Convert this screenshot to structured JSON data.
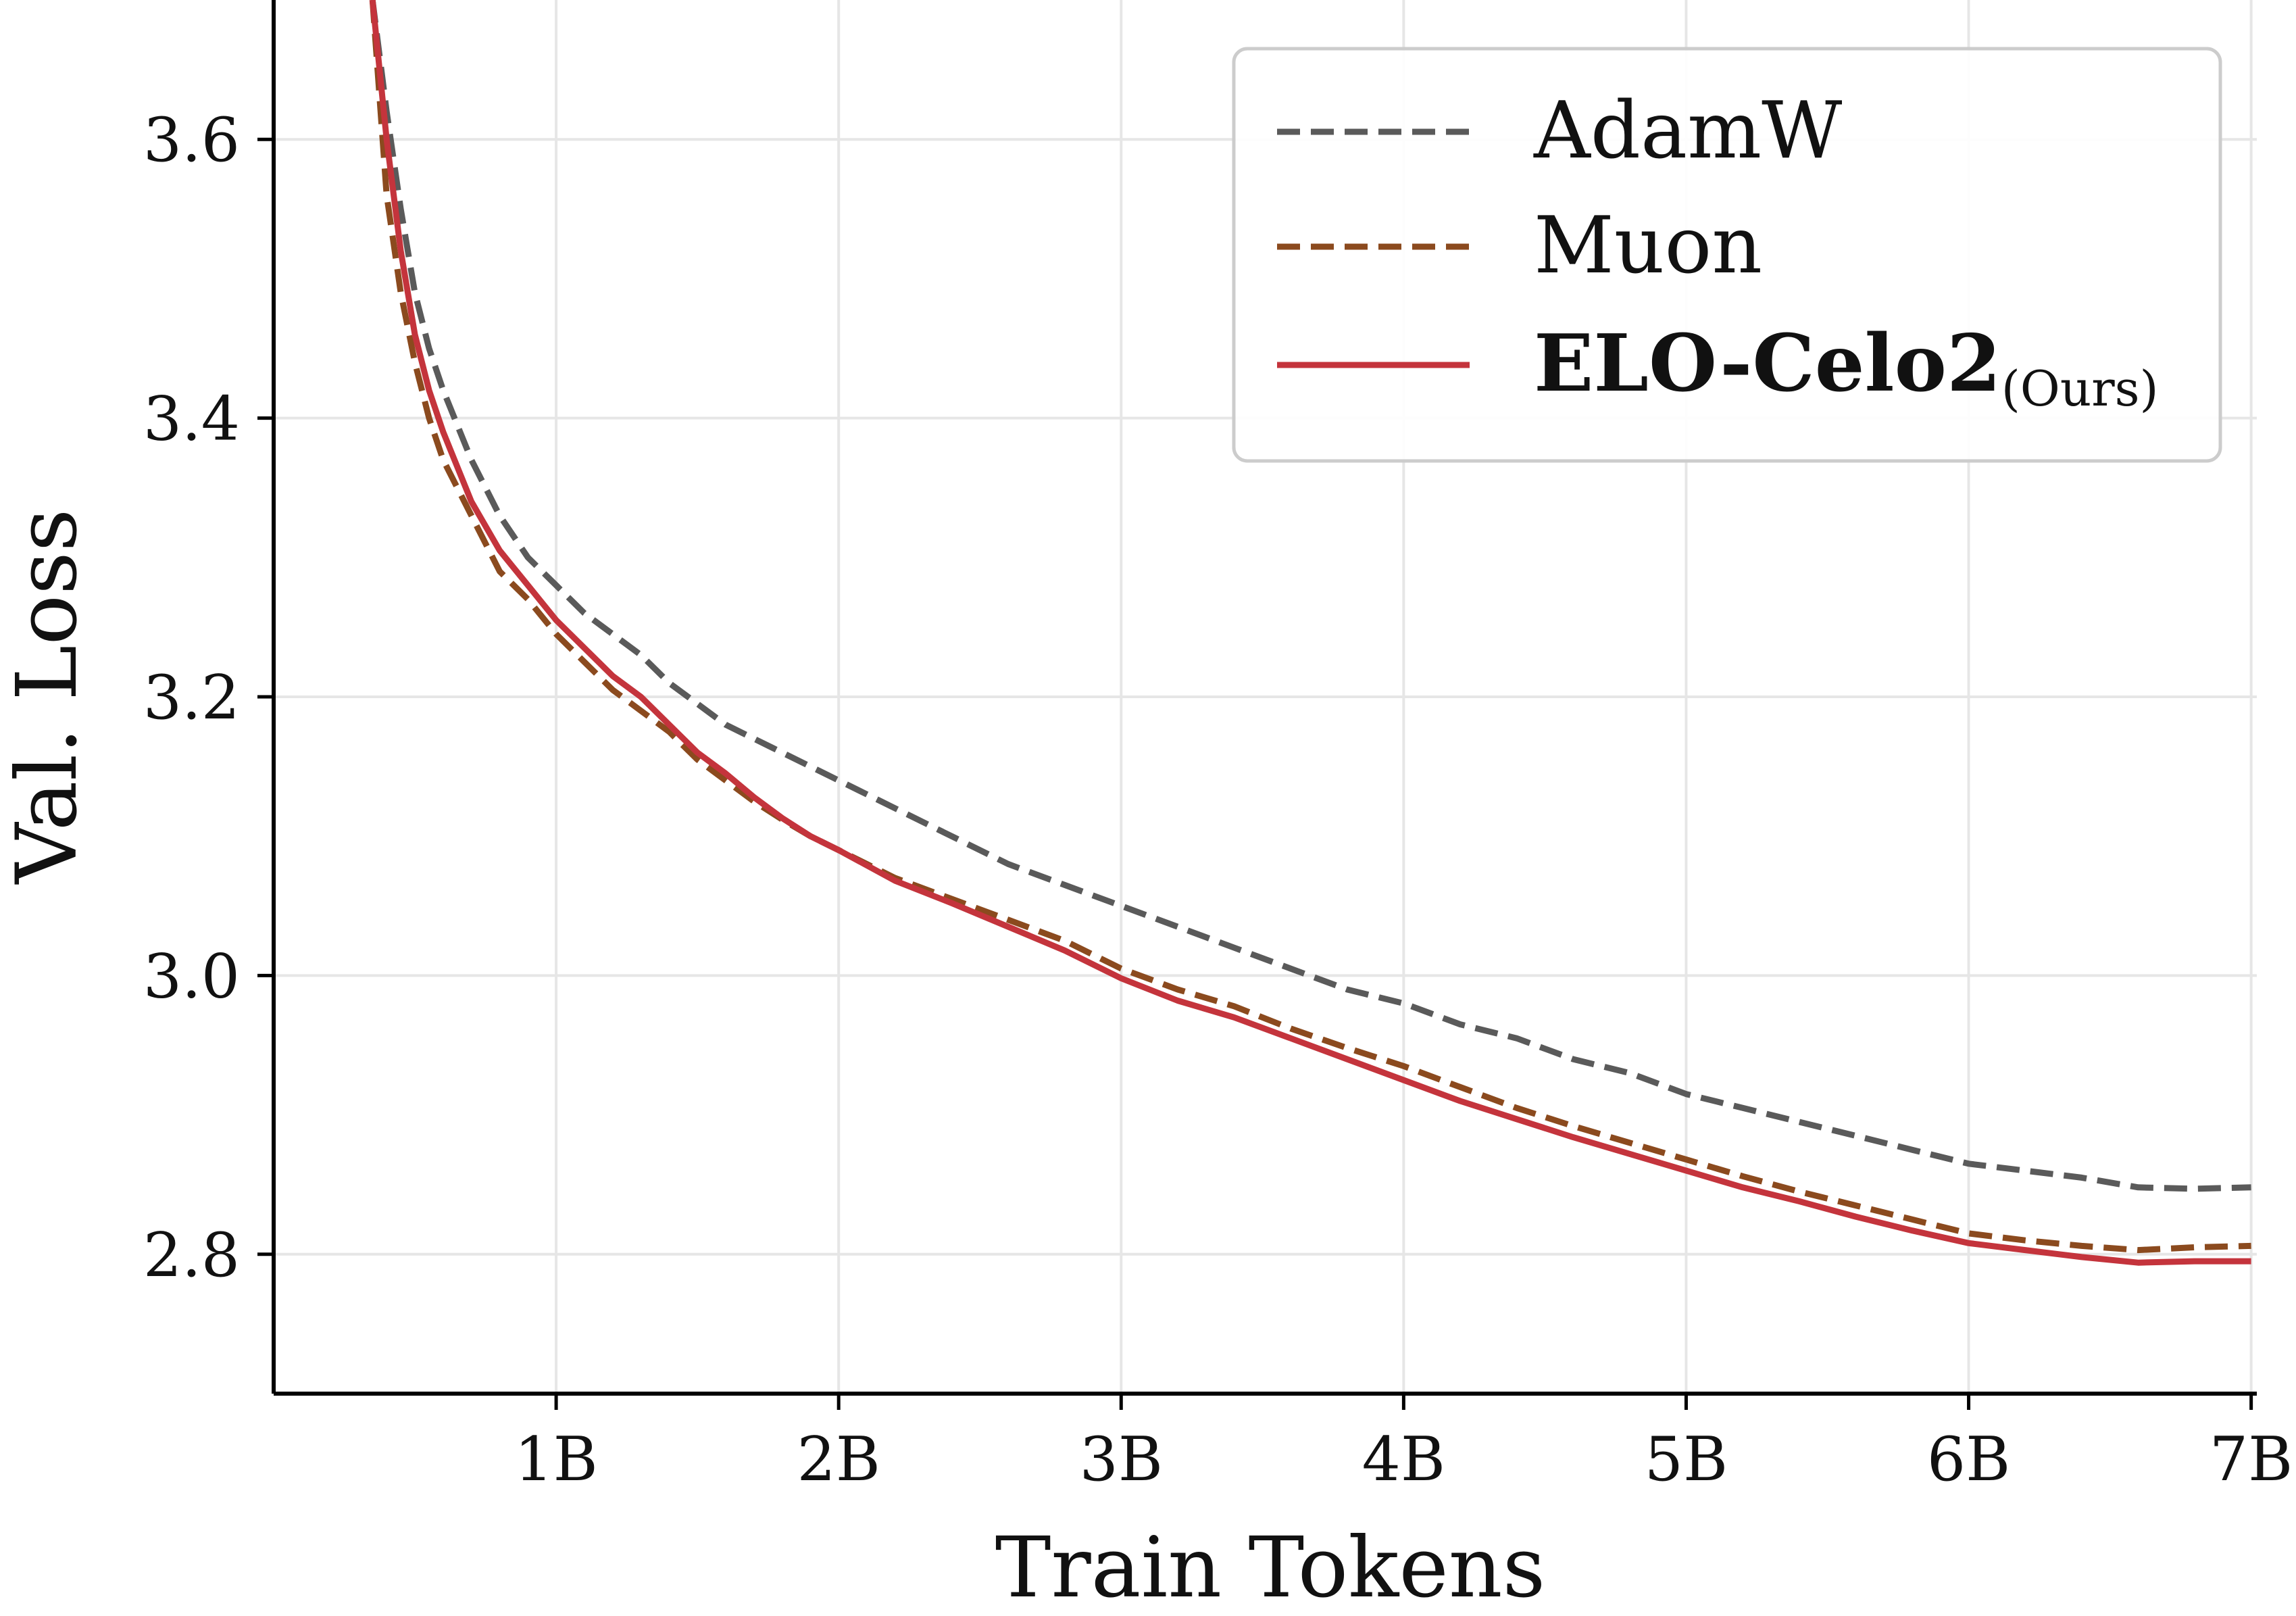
{
  "chart_data": {
    "type": "line",
    "title": "",
    "xlabel": "Train Tokens",
    "ylabel": "Val. Loss",
    "xlim": [
      0,
      7.02
    ],
    "ylim": [
      2.7,
      3.7
    ],
    "x_ticks": [
      1,
      2,
      3,
      4,
      5,
      6,
      7
    ],
    "x_tick_labels": [
      "1B",
      "2B",
      "3B",
      "4B",
      "5B",
      "6B",
      "7B"
    ],
    "y_ticks": [
      2.8,
      3.0,
      3.2,
      3.4,
      3.6
    ],
    "y_tick_labels": [
      "2.8",
      "3.0",
      "3.2",
      "3.4",
      "3.6"
    ],
    "grid": true,
    "legend_position": "top-right",
    "series": [
      {
        "name": "AdamW",
        "color": "#5a5a5a",
        "dash": "dashed",
        "x": [
          0.35,
          0.4,
          0.45,
          0.5,
          0.55,
          0.6,
          0.7,
          0.8,
          0.9,
          1.0,
          1.1,
          1.2,
          1.3,
          1.4,
          1.5,
          1.6,
          1.7,
          1.8,
          1.9,
          2.0,
          2.2,
          2.4,
          2.6,
          2.8,
          3.0,
          3.2,
          3.4,
          3.6,
          3.8,
          4.0,
          4.2,
          4.4,
          4.6,
          4.8,
          5.0,
          5.2,
          5.4,
          5.6,
          5.8,
          6.0,
          6.2,
          6.4,
          6.6,
          6.8,
          7.0
        ],
        "y": [
          3.7,
          3.62,
          3.55,
          3.49,
          3.45,
          3.42,
          3.37,
          3.33,
          3.3,
          3.28,
          3.26,
          3.245,
          3.23,
          3.21,
          3.195,
          3.18,
          3.17,
          3.16,
          3.15,
          3.14,
          3.12,
          3.1,
          3.08,
          3.065,
          3.05,
          3.035,
          3.02,
          3.005,
          2.99,
          2.98,
          2.965,
          2.955,
          2.94,
          2.93,
          2.915,
          2.905,
          2.895,
          2.885,
          2.875,
          2.865,
          2.86,
          2.855,
          2.848,
          2.847,
          2.848
        ]
      },
      {
        "name": "Muon",
        "color": "#8b4a1e",
        "dash": "dashed",
        "x": [
          0.35,
          0.4,
          0.45,
          0.5,
          0.55,
          0.6,
          0.7,
          0.8,
          0.9,
          1.0,
          1.1,
          1.2,
          1.3,
          1.4,
          1.5,
          1.6,
          1.7,
          1.8,
          1.9,
          2.0,
          2.2,
          2.4,
          2.6,
          2.8,
          3.0,
          3.2,
          3.4,
          3.6,
          3.8,
          4.0,
          4.2,
          4.4,
          4.6,
          4.8,
          5.0,
          5.2,
          5.4,
          5.6,
          5.8,
          6.0,
          6.2,
          6.4,
          6.6,
          6.8,
          7.0
        ],
        "y": [
          3.7,
          3.56,
          3.49,
          3.44,
          3.4,
          3.37,
          3.33,
          3.29,
          3.27,
          3.245,
          3.225,
          3.205,
          3.19,
          3.175,
          3.155,
          3.14,
          3.125,
          3.112,
          3.1,
          3.09,
          3.07,
          3.055,
          3.04,
          3.025,
          3.005,
          2.99,
          2.978,
          2.962,
          2.948,
          2.935,
          2.92,
          2.905,
          2.892,
          2.88,
          2.868,
          2.856,
          2.845,
          2.835,
          2.825,
          2.815,
          2.81,
          2.806,
          2.803,
          2.805,
          2.806
        ]
      },
      {
        "name": "ELO-Celo2",
        "name_suffix": "(Ours)",
        "color": "#c4343c",
        "dash": "solid",
        "x": [
          0.35,
          0.4,
          0.45,
          0.5,
          0.55,
          0.6,
          0.7,
          0.8,
          0.9,
          1.0,
          1.1,
          1.2,
          1.3,
          1.4,
          1.5,
          1.6,
          1.7,
          1.8,
          1.9,
          2.0,
          2.2,
          2.4,
          2.6,
          2.8,
          3.0,
          3.2,
          3.4,
          3.6,
          3.8,
          4.0,
          4.2,
          4.4,
          4.6,
          4.8,
          5.0,
          5.2,
          5.4,
          5.6,
          5.8,
          6.0,
          6.2,
          6.4,
          6.6,
          6.8,
          7.0
        ],
        "y": [
          3.7,
          3.6,
          3.52,
          3.46,
          3.42,
          3.39,
          3.34,
          3.305,
          3.28,
          3.255,
          3.235,
          3.215,
          3.2,
          3.18,
          3.16,
          3.145,
          3.128,
          3.113,
          3.1,
          3.09,
          3.068,
          3.052,
          3.035,
          3.018,
          2.998,
          2.982,
          2.97,
          2.955,
          2.94,
          2.925,
          2.91,
          2.897,
          2.884,
          2.872,
          2.86,
          2.848,
          2.838,
          2.827,
          2.817,
          2.808,
          2.803,
          2.798,
          2.794,
          2.795,
          2.795
        ]
      }
    ]
  }
}
